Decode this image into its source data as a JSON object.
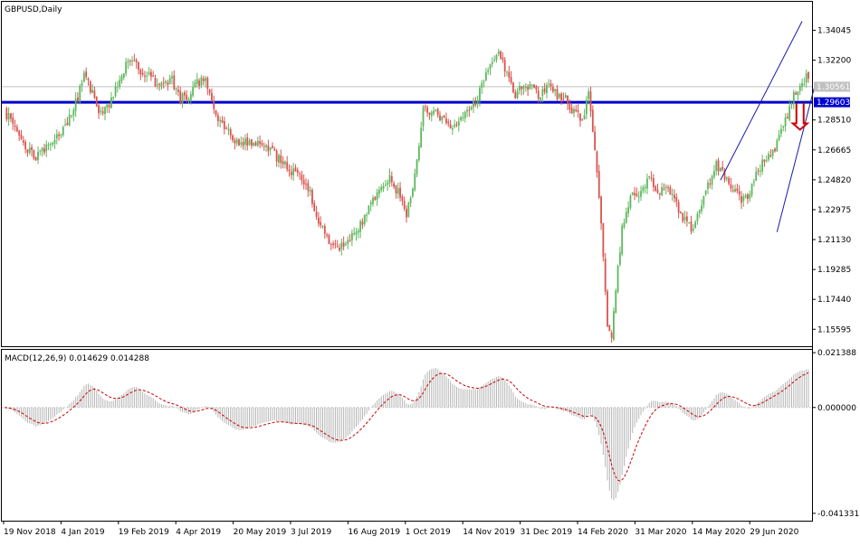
{
  "chart_data": [
    {
      "type": "candlestick",
      "panel": "price",
      "title": "GBPUSD,Daily",
      "ylim": [
        1.1455,
        1.358
      ],
      "y_ticks": [
        "1.34045",
        "1.32200",
        "1.30561",
        "1.29603",
        "1.28510",
        "1.26665",
        "1.24820",
        "1.22975",
        "1.21130",
        "1.19285",
        "1.17440",
        "1.15595"
      ],
      "x_ticks": [
        "19 Nov 2018",
        "4 Jan 2019",
        "19 Feb 2019",
        "4 Apr 2019",
        "20 May 2019",
        "3 Jul 2019",
        "16 Aug 2019",
        "1 Oct 2019",
        "14 Nov 2019",
        "31 Dec 2019",
        "14 Feb 2020",
        "31 Mar 2020",
        "14 May 2020",
        "29 Jun 2020"
      ],
      "current_price": {
        "value": 1.30561,
        "label": "1.30561",
        "color": "#c0c0c0"
      },
      "horizontal_line": {
        "value": 1.29603,
        "label": "1.29603",
        "color": "#0000cc"
      },
      "bull_color": "#5cb85c",
      "bear_color": "#d9534f",
      "channel_color": "#1a1aaa",
      "arrow_color": "#cc0000",
      "anchors": [
        [
          0,
          1.29
        ],
        [
          5,
          1.282
        ],
        [
          10,
          1.268
        ],
        [
          15,
          1.262
        ],
        [
          20,
          1.268
        ],
        [
          25,
          1.274
        ],
        [
          30,
          1.282
        ],
        [
          35,
          1.3
        ],
        [
          38,
          1.312
        ],
        [
          42,
          1.302
        ],
        [
          46,
          1.288
        ],
        [
          52,
          1.3
        ],
        [
          58,
          1.318
        ],
        [
          62,
          1.322
        ],
        [
          66,
          1.314
        ],
        [
          70,
          1.312
        ],
        [
          74,
          1.305
        ],
        [
          80,
          1.31
        ],
        [
          84,
          1.298
        ],
        [
          88,
          1.3
        ],
        [
          92,
          1.308
        ],
        [
          96,
          1.31
        ],
        [
          100,
          1.29
        ],
        [
          105,
          1.282
        ],
        [
          110,
          1.272
        ],
        [
          118,
          1.27
        ],
        [
          125,
          1.27
        ],
        [
          130,
          1.262
        ],
        [
          136,
          1.255
        ],
        [
          142,
          1.248
        ],
        [
          146,
          1.24
        ],
        [
          150,
          1.222
        ],
        [
          155,
          1.21
        ],
        [
          160,
          1.206
        ],
        [
          166,
          1.214
        ],
        [
          170,
          1.22
        ],
        [
          175,
          1.232
        ],
        [
          180,
          1.244
        ],
        [
          184,
          1.25
        ],
        [
          188,
          1.24
        ],
        [
          192,
          1.228
        ],
        [
          196,
          1.25
        ],
        [
          200,
          1.29
        ],
        [
          205,
          1.292
        ],
        [
          210,
          1.285
        ],
        [
          214,
          1.282
        ],
        [
          218,
          1.288
        ],
        [
          222,
          1.292
        ],
        [
          226,
          1.298
        ],
        [
          230,
          1.315
        ],
        [
          234,
          1.32
        ],
        [
          236,
          1.33
        ],
        [
          240,
          1.312
        ],
        [
          244,
          1.3
        ],
        [
          248,
          1.308
        ],
        [
          252,
          1.305
        ],
        [
          256,
          1.3
        ],
        [
          260,
          1.306
        ],
        [
          264,
          1.3
        ],
        [
          268,
          1.298
        ],
        [
          272,
          1.29
        ],
        [
          276,
          1.285
        ],
        [
          279,
          1.3
        ],
        [
          282,
          1.265
        ],
        [
          285,
          1.22
        ],
        [
          288,
          1.16
        ],
        [
          290,
          1.152
        ],
        [
          292,
          1.18
        ],
        [
          295,
          1.218
        ],
        [
          300,
          1.242
        ],
        [
          304,
          1.24
        ],
        [
          308,
          1.25
        ],
        [
          312,
          1.24
        ],
        [
          316,
          1.245
        ],
        [
          320,
          1.236
        ],
        [
          324,
          1.225
        ],
        [
          328,
          1.218
        ],
        [
          332,
          1.23
        ],
        [
          336,
          1.245
        ],
        [
          340,
          1.258
        ],
        [
          344,
          1.25
        ],
        [
          348,
          1.244
        ],
        [
          352,
          1.236
        ],
        [
          356,
          1.24
        ],
        [
          360,
          1.254
        ],
        [
          364,
          1.262
        ],
        [
          368,
          1.268
        ],
        [
          372,
          1.28
        ],
        [
          376,
          1.298
        ],
        [
          380,
          1.308
        ],
        [
          384,
          1.312
        ]
      ]
    },
    {
      "type": "histogram",
      "panel": "indicator",
      "title": "MACD(12,26,9) 0.014629 0.014288",
      "ylim": [
        -0.0442,
        0.0225
      ],
      "y_ticks": [
        "0.021388",
        "0.000000",
        "-0.041331"
      ],
      "histogram_color": "#b4b4b4",
      "signal_color": "#cc0000"
    }
  ]
}
